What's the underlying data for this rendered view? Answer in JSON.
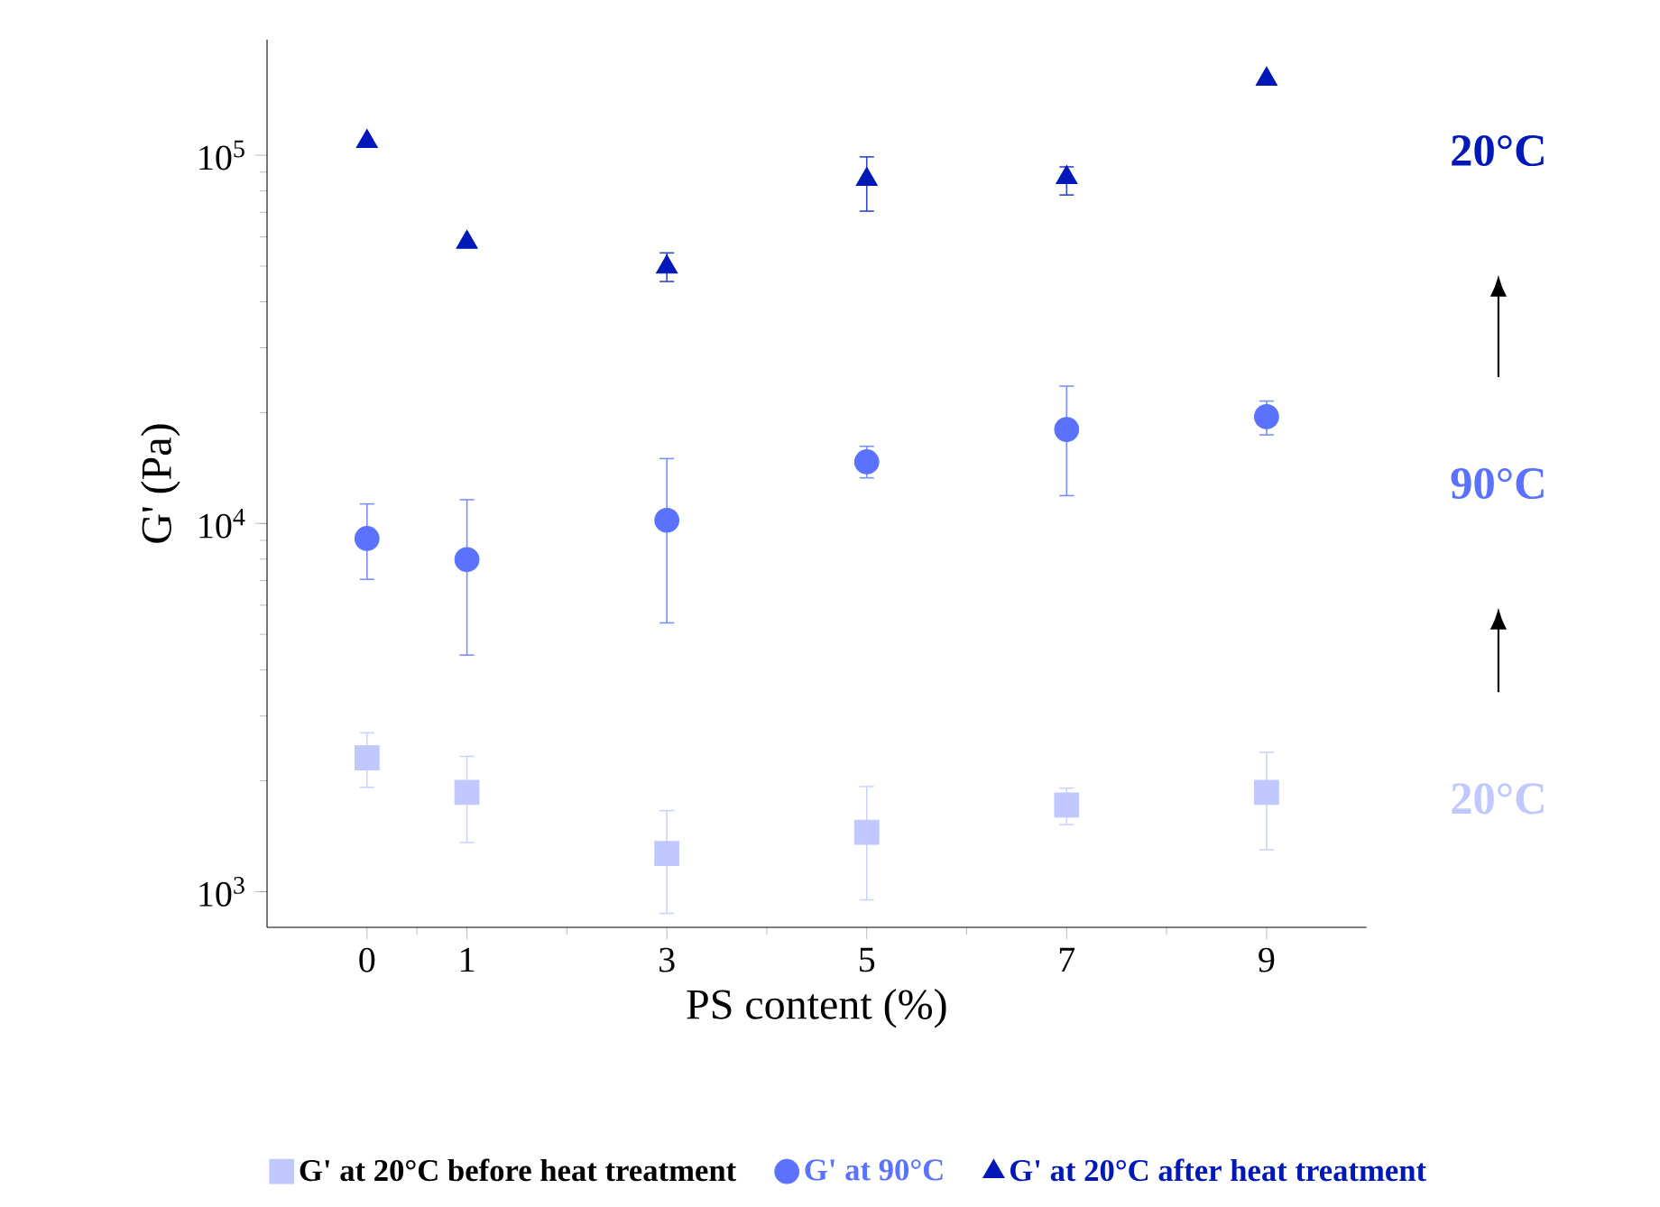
{
  "chart_data": {
    "type": "scatter",
    "xlabel": "PS content (%)",
    "ylabel": "G' (Pa)",
    "log": "y",
    "x": [
      0,
      1,
      3,
      5,
      7,
      9
    ],
    "xlim": [
      -1,
      10
    ],
    "xticks": [
      0,
      {
        "value": 0.5,
        "label": null
      },
      1,
      {
        "value": 2,
        "label": null
      },
      3,
      {
        "value": 4,
        "label": null
      },
      5,
      {
        "value": 6,
        "label": null
      },
      7,
      {
        "value": 8,
        "label": null
      },
      9
    ],
    "ylim": [
      800,
      206000
    ],
    "yticks": [
      {
        "value": 1000,
        "label": "10$^{3}$"
      },
      {
        "value": 10000,
        "label": "10$^{4}$"
      },
      {
        "value": 100000,
        "label": "10$^{5}$"
      }
    ],
    "legend": "bottom",
    "grid": false,
    "series": [
      {
        "name": "G' at 20°C before heat treatment",
        "color": "#c0c8ff",
        "marker": "square",
        "values": [
          2310,
          1860,
          1270,
          1450,
          1720,
          1860
        ],
        "errors": [
          [
            1920,
            2700
          ],
          [
            1360,
            2330
          ],
          [
            873,
            1660
          ],
          [
            950,
            1930
          ],
          [
            1520,
            1910
          ],
          [
            1300,
            2390
          ]
        ]
      },
      {
        "name": "G' at 90°C",
        "color": "#5a72ff",
        "marker": "circle",
        "values": [
          9100,
          7980,
          10200,
          14700,
          18000,
          19500
        ],
        "errors": [
          [
            7050,
            11300
          ],
          [
            4390,
            11600
          ],
          [
            5370,
            15000
          ],
          [
            13300,
            16200
          ],
          [
            11900,
            23600
          ],
          [
            17400,
            21500
          ]
        ]
      },
      {
        "name": "G' at 20°C after heat treatment",
        "color": "#0018b8",
        "marker": "triangle",
        "values": [
          109000,
          58000,
          49700,
          86000,
          87000,
          161000
        ],
        "errors": [
          null,
          null,
          [
            45400,
            54300
          ],
          [
            70500,
            99000
          ],
          [
            78000,
            93000
          ],
          null
        ]
      }
    ],
    "annotations": [
      "20°C",
      "90°C",
      "20°C"
    ]
  }
}
